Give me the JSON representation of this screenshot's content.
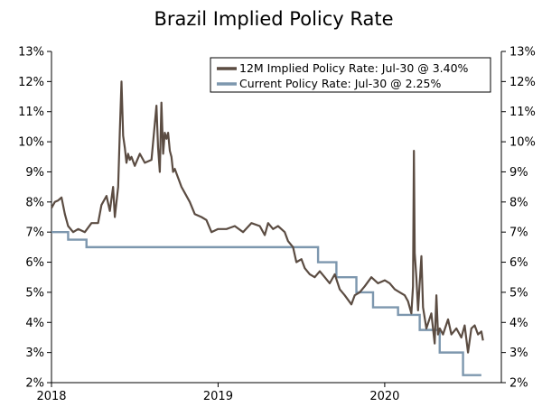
{
  "colors": {
    "implied": "#5b4c42",
    "current": "#7d97ae",
    "axis": "#000000",
    "legend_border": "#000000"
  },
  "chart_data": {
    "type": "line",
    "title": "Brazil Implied Policy Rate",
    "xlabel": "",
    "ylabel": "",
    "x_range": [
      2018.0,
      2020.7
    ],
    "ylim": [
      2,
      13
    ],
    "y_ticks": [
      2,
      3,
      4,
      5,
      6,
      7,
      8,
      9,
      10,
      11,
      12,
      13
    ],
    "y_tick_labels": [
      "2%",
      "3%",
      "4%",
      "5%",
      "6%",
      "7%",
      "8%",
      "9%",
      "10%",
      "11%",
      "12%",
      "13%"
    ],
    "x_ticks": [
      2018,
      2019,
      2020
    ],
    "x_tick_labels": [
      "2018",
      "2019",
      "2020"
    ],
    "grid": false,
    "legend_position": "top-right",
    "series": [
      {
        "name": "12M Implied Policy Rate: Jul-30 @ 3.40%",
        "style": "line",
        "x": [
          2018.0,
          2018.02,
          2018.04,
          2018.06,
          2018.08,
          2018.1,
          2018.13,
          2018.16,
          2018.2,
          2018.24,
          2018.28,
          2018.3,
          2018.33,
          2018.35,
          2018.37,
          2018.38,
          2018.4,
          2018.41,
          2018.42,
          2018.43,
          2018.44,
          2018.45,
          2018.46,
          2018.47,
          2018.48,
          2018.5,
          2018.53,
          2018.56,
          2018.6,
          2018.63,
          2018.64,
          2018.65,
          2018.66,
          2018.67,
          2018.68,
          2018.69,
          2018.7,
          2018.71,
          2018.72,
          2018.73,
          2018.74,
          2018.76,
          2018.78,
          2018.8,
          2018.83,
          2018.86,
          2018.9,
          2018.93,
          2018.96,
          2019.0,
          2019.05,
          2019.1,
          2019.15,
          2019.2,
          2019.25,
          2019.28,
          2019.3,
          2019.33,
          2019.36,
          2019.4,
          2019.42,
          2019.45,
          2019.47,
          2019.5,
          2019.52,
          2019.55,
          2019.58,
          2019.61,
          2019.64,
          2019.67,
          2019.7,
          2019.73,
          2019.76,
          2019.8,
          2019.82,
          2019.85,
          2019.88,
          2019.92,
          2019.96,
          2020.0,
          2020.03,
          2020.06,
          2020.09,
          2020.12,
          2020.14,
          2020.16,
          2020.17,
          2020.175,
          2020.18,
          2020.19,
          2020.2,
          2020.21,
          2020.22,
          2020.23,
          2020.25,
          2020.28,
          2020.3,
          2020.31,
          2020.32,
          2020.33,
          2020.35,
          2020.38,
          2020.4,
          2020.43,
          2020.46,
          2020.48,
          2020.5,
          2020.52,
          2020.54,
          2020.56,
          2020.58,
          2020.59
        ],
        "values": [
          7.8,
          8.0,
          8.05,
          8.15,
          7.6,
          7.2,
          7.0,
          7.1,
          7.0,
          7.3,
          7.3,
          7.9,
          8.2,
          7.7,
          8.5,
          7.5,
          8.5,
          10.3,
          12.0,
          10.2,
          9.8,
          9.3,
          9.6,
          9.4,
          9.5,
          9.2,
          9.6,
          9.3,
          9.4,
          11.2,
          9.8,
          9.0,
          11.3,
          9.6,
          10.3,
          10.1,
          10.3,
          9.7,
          9.5,
          9.0,
          9.1,
          8.8,
          8.5,
          8.3,
          8.0,
          7.6,
          7.5,
          7.4,
          7.0,
          7.1,
          7.1,
          7.2,
          7.0,
          7.3,
          7.2,
          6.9,
          7.3,
          7.1,
          7.2,
          7.0,
          6.7,
          6.5,
          6.0,
          6.1,
          5.8,
          5.6,
          5.5,
          5.7,
          5.5,
          5.3,
          5.6,
          5.1,
          4.9,
          4.6,
          4.9,
          5.0,
          5.2,
          5.5,
          5.3,
          5.4,
          5.3,
          5.1,
          5.0,
          4.9,
          4.7,
          4.3,
          5.2,
          9.7,
          6.3,
          5.5,
          4.4,
          5.3,
          6.2,
          4.5,
          3.8,
          4.3,
          3.3,
          4.9,
          3.6,
          3.8,
          3.6,
          4.1,
          3.6,
          3.8,
          3.5,
          3.9,
          3.0,
          3.8,
          3.9,
          3.6,
          3.7,
          3.4
        ]
      },
      {
        "name": "Current Policy Rate: Jul-30 @ 2.25%",
        "style": "step",
        "x": [
          2018.0,
          2018.1,
          2018.21,
          2019.6,
          2019.71,
          2019.83,
          2019.93,
          2020.08,
          2020.21,
          2020.33,
          2020.47,
          2020.58
        ],
        "values": [
          7.0,
          6.75,
          6.5,
          6.0,
          5.5,
          5.0,
          4.5,
          4.25,
          3.75,
          3.0,
          2.25,
          2.25
        ]
      }
    ]
  }
}
